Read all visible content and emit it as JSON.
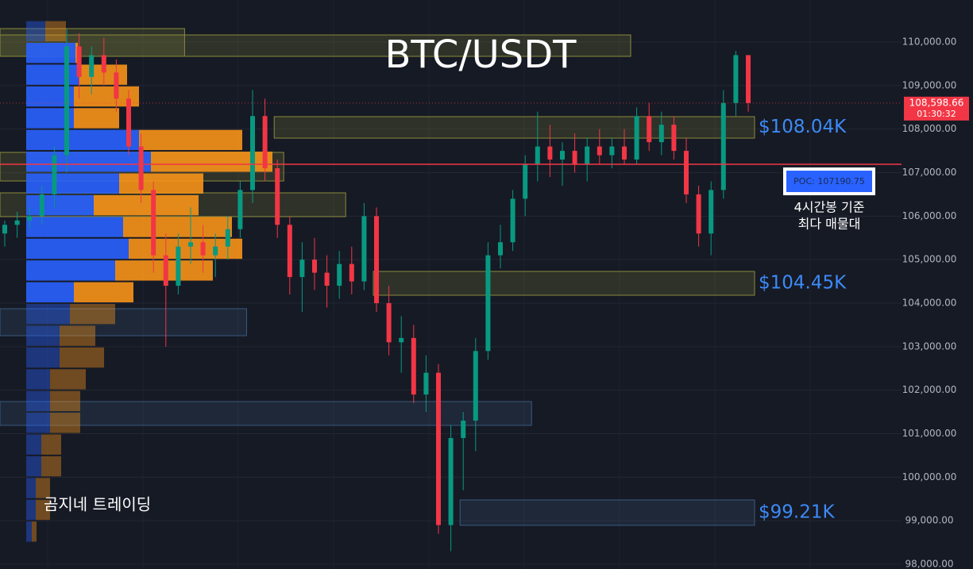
{
  "chart_data": {
    "type": "candlestick",
    "title": "BTC/USDT",
    "ylim": [
      97890,
      110967
    ],
    "yticks": [
      {
        "value": 98000,
        "label": "98,000.00"
      },
      {
        "value": 99000,
        "label": "99,000.00"
      },
      {
        "value": 100000,
        "label": "100,000.00"
      },
      {
        "value": 101000,
        "label": "101,000.00"
      },
      {
        "value": 102000,
        "label": "102,000.00"
      },
      {
        "value": 103000,
        "label": "103,000.00"
      },
      {
        "value": 104000,
        "label": "104,000.00"
      },
      {
        "value": 105000,
        "label": "105,000.00"
      },
      {
        "value": 106000,
        "label": "106,000.00"
      },
      {
        "value": 107000,
        "label": "107,000.00"
      },
      {
        "value": 108000,
        "label": "108,000.00"
      },
      {
        "value": 109000,
        "label": "109,000.00"
      },
      {
        "value": 110000,
        "label": "110,000.00"
      }
    ],
    "grid": true,
    "up_color": "#089981",
    "down_color": "#f23645",
    "candles": [
      {
        "o": 105600,
        "h": 105900,
        "l": 105300,
        "c": 105800
      },
      {
        "o": 105800,
        "h": 106100,
        "l": 105500,
        "c": 105900
      },
      {
        "o": 105900,
        "h": 106200,
        "l": 105700,
        "c": 106000
      },
      {
        "o": 106000,
        "h": 106700,
        "l": 105800,
        "c": 106500
      },
      {
        "o": 106500,
        "h": 107600,
        "l": 106200,
        "c": 107400
      },
      {
        "o": 107400,
        "h": 110300,
        "l": 107000,
        "c": 109900
      },
      {
        "o": 109900,
        "h": 110200,
        "l": 108700,
        "c": 109200
      },
      {
        "o": 109200,
        "h": 109900,
        "l": 108800,
        "c": 109700
      },
      {
        "o": 109700,
        "h": 110100,
        "l": 109000,
        "c": 109300
      },
      {
        "o": 109300,
        "h": 109600,
        "l": 108400,
        "c": 108700
      },
      {
        "o": 108700,
        "h": 108900,
        "l": 107400,
        "c": 107600
      },
      {
        "o": 107600,
        "h": 107900,
        "l": 106300,
        "c": 106600
      },
      {
        "o": 106600,
        "h": 106800,
        "l": 104700,
        "c": 105100
      },
      {
        "o": 105100,
        "h": 105600,
        "l": 103000,
        "c": 104400
      },
      {
        "o": 104400,
        "h": 105600,
        "l": 104200,
        "c": 105300
      },
      {
        "o": 105300,
        "h": 106200,
        "l": 104900,
        "c": 105400
      },
      {
        "o": 105400,
        "h": 105800,
        "l": 104700,
        "c": 105100
      },
      {
        "o": 105100,
        "h": 105600,
        "l": 104600,
        "c": 105300
      },
      {
        "o": 105300,
        "h": 106000,
        "l": 105000,
        "c": 105700
      },
      {
        "o": 105700,
        "h": 106800,
        "l": 105500,
        "c": 106600
      },
      {
        "o": 106600,
        "h": 108900,
        "l": 106300,
        "c": 108300
      },
      {
        "o": 108300,
        "h": 108700,
        "l": 106800,
        "c": 107100
      },
      {
        "o": 107100,
        "h": 107300,
        "l": 105500,
        "c": 105800
      },
      {
        "o": 105800,
        "h": 106000,
        "l": 104200,
        "c": 104600
      },
      {
        "o": 104600,
        "h": 105400,
        "l": 103800,
        "c": 105000
      },
      {
        "o": 105000,
        "h": 105500,
        "l": 104300,
        "c": 104700
      },
      {
        "o": 104700,
        "h": 105100,
        "l": 103900,
        "c": 104400
      },
      {
        "o": 104400,
        "h": 105200,
        "l": 104100,
        "c": 104900
      },
      {
        "o": 104900,
        "h": 105300,
        "l": 104200,
        "c": 104500
      },
      {
        "o": 104500,
        "h": 106300,
        "l": 104300,
        "c": 106000
      },
      {
        "o": 106000,
        "h": 106200,
        "l": 103800,
        "c": 104000
      },
      {
        "o": 104000,
        "h": 104400,
        "l": 102800,
        "c": 103100
      },
      {
        "o": 103100,
        "h": 103700,
        "l": 102400,
        "c": 103200
      },
      {
        "o": 103200,
        "h": 103500,
        "l": 101700,
        "c": 101900
      },
      {
        "o": 101900,
        "h": 102800,
        "l": 101500,
        "c": 102400
      },
      {
        "o": 102400,
        "h": 102600,
        "l": 98700,
        "c": 98900
      },
      {
        "o": 98900,
        "h": 101200,
        "l": 98300,
        "c": 100900
      },
      {
        "o": 100900,
        "h": 101500,
        "l": 99700,
        "c": 101300
      },
      {
        "o": 101300,
        "h": 103200,
        "l": 100600,
        "c": 102900
      },
      {
        "o": 102900,
        "h": 105400,
        "l": 102700,
        "c": 105100
      },
      {
        "o": 105100,
        "h": 105800,
        "l": 104800,
        "c": 105400
      },
      {
        "o": 105400,
        "h": 106600,
        "l": 105200,
        "c": 106400
      },
      {
        "o": 106400,
        "h": 107400,
        "l": 106000,
        "c": 107200
      },
      {
        "o": 107200,
        "h": 108400,
        "l": 106800,
        "c": 107600
      },
      {
        "o": 107600,
        "h": 108100,
        "l": 106900,
        "c": 107300
      },
      {
        "o": 107300,
        "h": 107700,
        "l": 106700,
        "c": 107500
      },
      {
        "o": 107500,
        "h": 107900,
        "l": 107000,
        "c": 107200
      },
      {
        "o": 107200,
        "h": 107800,
        "l": 106800,
        "c": 107600
      },
      {
        "o": 107600,
        "h": 108000,
        "l": 107200,
        "c": 107400
      },
      {
        "o": 107400,
        "h": 107800,
        "l": 107100,
        "c": 107600
      },
      {
        "o": 107600,
        "h": 108000,
        "l": 107200,
        "c": 107300
      },
      {
        "o": 107300,
        "h": 108500,
        "l": 107200,
        "c": 108300
      },
      {
        "o": 108300,
        "h": 108600,
        "l": 107500,
        "c": 107700
      },
      {
        "o": 107700,
        "h": 108400,
        "l": 107400,
        "c": 108100
      },
      {
        "o": 108100,
        "h": 108300,
        "l": 107300,
        "c": 107500
      },
      {
        "o": 107500,
        "h": 107800,
        "l": 106300,
        "c": 106500
      },
      {
        "o": 106500,
        "h": 106700,
        "l": 105300,
        "c": 105600
      },
      {
        "o": 105600,
        "h": 106800,
        "l": 105100,
        "c": 106600
      },
      {
        "o": 106600,
        "h": 108900,
        "l": 106400,
        "c": 108600
      },
      {
        "o": 108600,
        "h": 109800,
        "l": 108300,
        "c": 109700
      },
      {
        "o": 109700,
        "h": 109700,
        "l": 108400,
        "c": 108598.66
      }
    ],
    "last_price": {
      "value": 108598.66,
      "label": "108,598.66"
    },
    "countdown": "01:30:32",
    "poc": {
      "value": 107190.75,
      "label": "POC: 107190.75"
    },
    "volume_profile": {
      "bins": [
        98500,
        99000,
        99500,
        100000,
        100500,
        101000,
        101500,
        102000,
        102500,
        103000,
        103500,
        104000,
        104500,
        105000,
        105500,
        106000,
        106500,
        107000,
        107500,
        108000,
        108500,
        109000,
        109500,
        110000,
        110500
      ],
      "buy": [
        7,
        12,
        12,
        19,
        19,
        30,
        30,
        30,
        42,
        42,
        55,
        60,
        112,
        129,
        122,
        85,
        117,
        157,
        142,
        60,
        60,
        67,
        62,
        24
      ],
      "sell": [
        6,
        18,
        18,
        25,
        25,
        38,
        38,
        45,
        56,
        45,
        57,
        75,
        123,
        143,
        137,
        132,
        106,
        153,
        130,
        57,
        82,
        60,
        3,
        26
      ],
      "buy_color": "#2962ff",
      "sell_color": "#f7931a",
      "value_area": [
        104000,
        110000
      ]
    },
    "zones": [
      {
        "low": 109672,
        "high": 110310,
        "start": 0,
        "end": 14,
        "color": "#8a8a3a"
      },
      {
        "low": 109672,
        "high": 110164,
        "start": 0,
        "end": 50,
        "color": "#8a8a3a"
      },
      {
        "low": 106808,
        "high": 107465,
        "start": 0,
        "end": 22,
        "color": "#8a8a3a"
      },
      {
        "low": 105988,
        "high": 106535,
        "start": 0,
        "end": 27,
        "color": "#8a8a3a"
      },
      {
        "low": 103252,
        "high": 103872,
        "start": 0,
        "end": 19,
        "color": "#3a5a80"
      },
      {
        "low": 101191,
        "high": 101738,
        "start": 0,
        "end": 42,
        "color": "#3a5a80"
      },
      {
        "low": 107793,
        "high": 108286,
        "start": 22,
        "end": 60,
        "color": "#8a8a3a",
        "label": "$108.04K"
      },
      {
        "low": 104182,
        "high": 104729,
        "start": 30,
        "end": 60,
        "color": "#8a8a3a",
        "label": "$104.45K"
      },
      {
        "low": 98894,
        "high": 99477,
        "start": 37,
        "end": 60,
        "color": "#3a5a80",
        "label": "$99.21K"
      }
    ],
    "annotation": [
      "4시간봉 기준",
      "최다 매물대"
    ],
    "watermark": "곰지네 트레이딩"
  }
}
